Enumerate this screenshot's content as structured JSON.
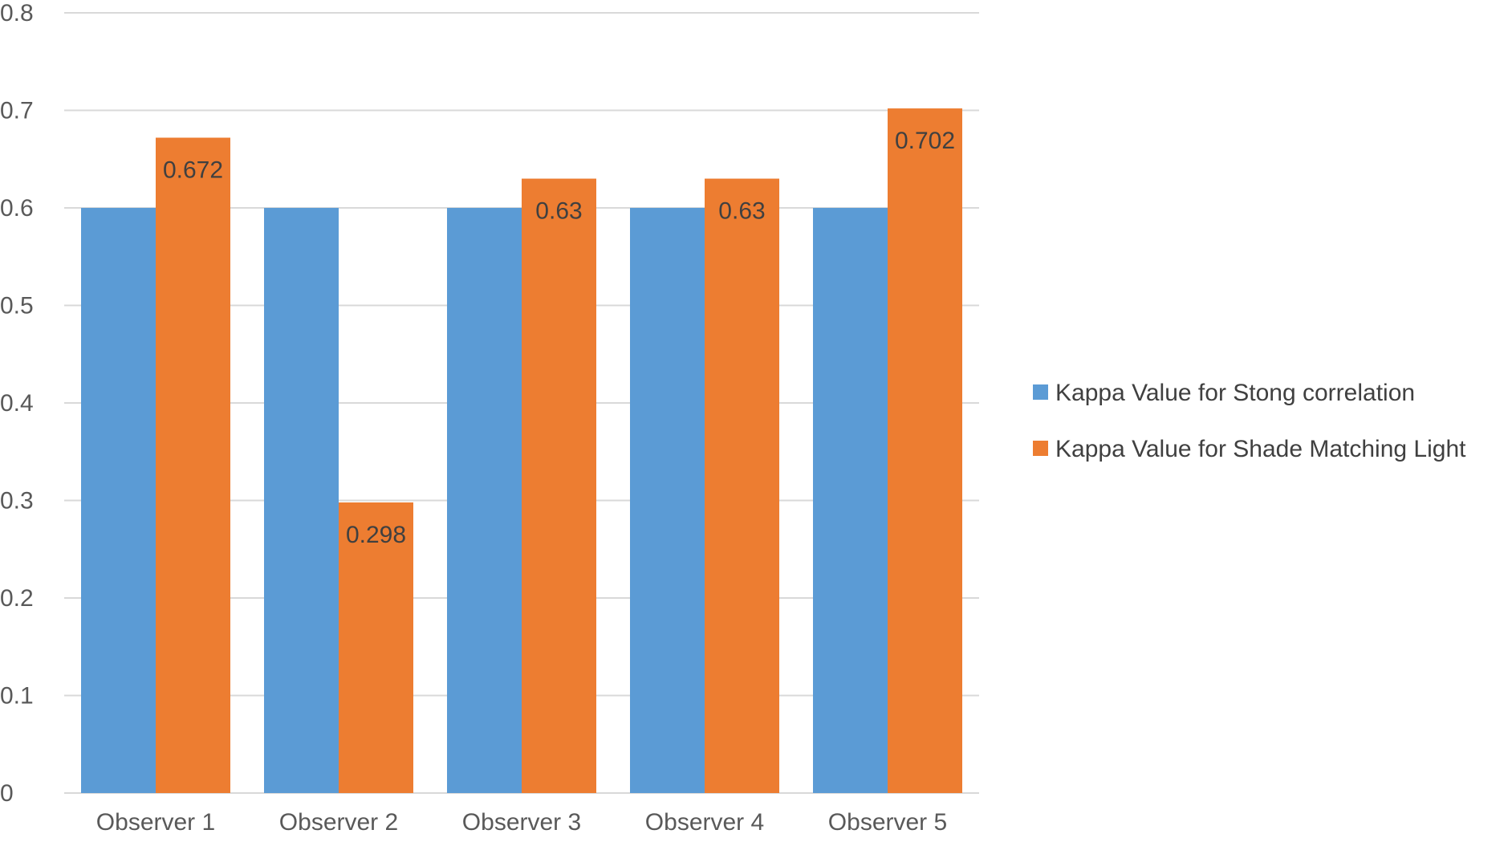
{
  "chart_data": {
    "type": "bar",
    "title": "",
    "xlabel": "",
    "ylabel": "",
    "categories": [
      "Observer 1",
      "Observer 2",
      "Observer 3",
      "Observer 4",
      "Observer 5"
    ],
    "series": [
      {
        "name": "Kappa Value for Stong correlation",
        "color": "#5b9bd5",
        "values": [
          0.6,
          0.6,
          0.6,
          0.6,
          0.6
        ],
        "show_labels": false
      },
      {
        "name": "Kappa Value for Shade Matching Light",
        "color": "#ed7d31",
        "values": [
          0.672,
          0.298,
          0.63,
          0.63,
          0.702
        ],
        "data_labels": [
          "0.672",
          "0.298",
          "0.63",
          "0.63",
          "0.702"
        ],
        "show_labels": true
      }
    ],
    "ylim": [
      0,
      0.8
    ],
    "yticks": [
      0,
      0.1,
      0.2,
      0.3,
      0.4,
      0.5,
      0.6,
      0.7,
      0.8
    ],
    "ytick_labels": [
      "0",
      "0.1",
      "0.2",
      "0.3",
      "0.4",
      "0.5",
      "0.6",
      "0.7",
      "0.8"
    ],
    "grid": true,
    "legend_position": "right"
  }
}
